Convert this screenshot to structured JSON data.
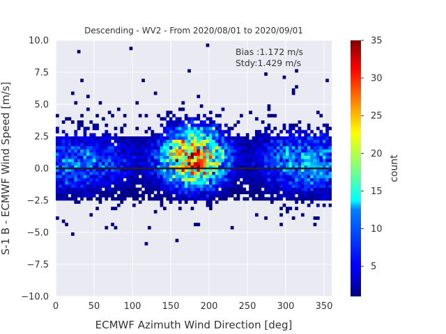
{
  "chart_data": {
    "type": "heatmap",
    "title": "Descending - WV2 - From 2020/08/01 to 2020/09/01",
    "xlabel": "ECMWF Azimuth Wind Direction [deg]",
    "ylabel": "S-1 B - ECMWF Wind Speed [m/s]",
    "xlim": [
      0,
      360
    ],
    "ylim": [
      -10,
      10
    ],
    "xticks": [
      0,
      50,
      100,
      150,
      200,
      250,
      300,
      350
    ],
    "yticks": [
      -10.0,
      -7.5,
      -5.0,
      -2.5,
      0.0,
      2.5,
      5.0,
      7.5,
      10.0
    ],
    "xtick_labels": [
      "0",
      "50",
      "100",
      "150",
      "200",
      "250",
      "300",
      "350"
    ],
    "ytick_labels": [
      "−10.0",
      "−7.5",
      "−5.0",
      "−2.5",
      "0.0",
      "2.5",
      "5.0",
      "7.5",
      "10.0"
    ],
    "grid": true,
    "colormap": "jet",
    "colorbar": {
      "label": "count",
      "range": [
        1,
        35
      ],
      "ticks": [
        5,
        10,
        15,
        20,
        25,
        30,
        35
      ],
      "tick_labels": [
        "5",
        "10",
        "15",
        "20",
        "25",
        "30",
        "35"
      ]
    },
    "reference_line_y": 0,
    "annotations": {
      "bias": "Bias :1.172 m/s",
      "stdy": "Stdy:1.429 m/s"
    },
    "density_clusters": [
      {
        "x": 0,
        "y": 0.3,
        "count": 6
      },
      {
        "x": 35,
        "y": 0.5,
        "count": 6
      },
      {
        "x": 75,
        "y": 0.6,
        "count": 5
      },
      {
        "x": 180,
        "y": 0.8,
        "count": 30
      },
      {
        "x": 290,
        "y": 0.6,
        "count": 7
      },
      {
        "x": 330,
        "y": 0.4,
        "count": 8
      },
      {
        "x": 360,
        "y": 0.3,
        "count": 6
      }
    ]
  }
}
